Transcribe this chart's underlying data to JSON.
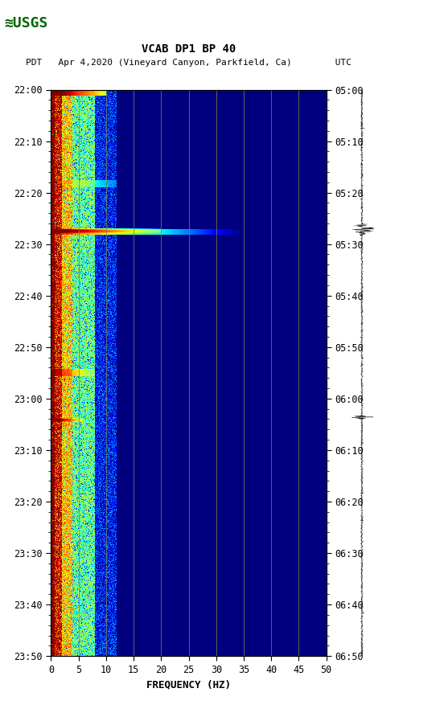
{
  "title_line1": "VCAB DP1 BP 40",
  "title_line2": "PDT   Apr 4,2020 (Vineyard Canyon, Parkfield, Ca)        UTC",
  "left_time_labels": [
    "22:00",
    "22:10",
    "22:20",
    "22:30",
    "22:40",
    "22:50",
    "23:00",
    "23:10",
    "23:20",
    "23:30",
    "23:40",
    "23:50"
  ],
  "right_time_labels": [
    "05:00",
    "05:10",
    "05:20",
    "05:30",
    "05:40",
    "05:50",
    "06:00",
    "06:10",
    "06:20",
    "06:30",
    "06:40",
    "06:50"
  ],
  "freq_ticks": [
    0,
    5,
    10,
    15,
    20,
    25,
    30,
    35,
    40,
    45,
    50
  ],
  "freq_label": "FREQUENCY (HZ)",
  "xlim": [
    0,
    50
  ],
  "n_time": 720,
  "n_freq": 500,
  "spectrogram_cmap": "jet",
  "grid_color": "#808040",
  "grid_freq_lines": [
    5,
    10,
    15,
    20,
    25,
    30,
    35,
    40,
    45
  ],
  "text_color": "black",
  "fig_bg": "white",
  "vmin": -8,
  "vmax": 2
}
